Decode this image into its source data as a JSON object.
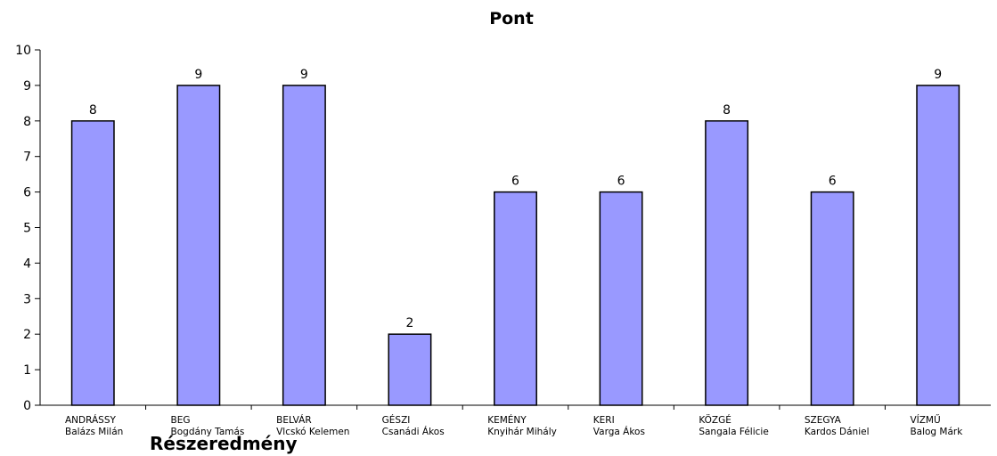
{
  "chart_data": {
    "type": "bar",
    "title": "Pont",
    "categories": [
      [
        "ANDRÁSSY",
        "Balázs Milán"
      ],
      [
        "BEG",
        "Bogdány Tamás"
      ],
      [
        "BELVÁR",
        "Vlcskó Kelemen"
      ],
      [
        "GÉSZI",
        "Csanádi Ákos"
      ],
      [
        "KEMÉNY",
        "Knyihár Mihály"
      ],
      [
        "KERI",
        "Varga Ákos"
      ],
      [
        "KÖZGÉ",
        "Sangala Félicie"
      ],
      [
        "SZEGYA",
        "Kardos Dániel"
      ],
      [
        "VÍZMŰ",
        "Balog Márk"
      ]
    ],
    "values": [
      8,
      9,
      9,
      2,
      6,
      6,
      8,
      6,
      9
    ],
    "ylim": [
      0,
      10
    ],
    "yticks": [
      0,
      1,
      2,
      3,
      4,
      5,
      6,
      7,
      8,
      9,
      10
    ],
    "bar_color": "#9999ff",
    "bar_edge": "#000000",
    "data_labels": true,
    "grid": false,
    "legend": "none"
  },
  "caption": "Részeredmény"
}
